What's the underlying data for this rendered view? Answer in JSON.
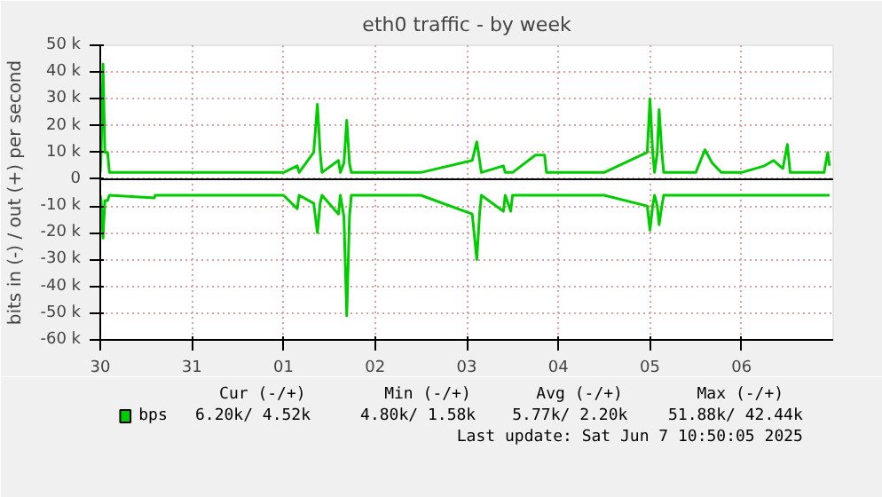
{
  "chart_data": {
    "type": "line",
    "title": "eth0 traffic - by week",
    "ylabel": "bits in (-) / out (+) per second",
    "x": [
      "2025-05-30T00:00",
      "2025-05-30T00:14",
      "2025-05-30T00:43",
      "2025-05-30T01:12",
      "2025-05-30T01:55",
      "2025-05-30T02:24",
      "2025-05-30T14:10",
      "2025-05-30T14:24",
      "2025-05-31T00:00",
      "2025-05-31T12:00",
      "2025-06-01T00:00",
      "2025-06-01T03:36",
      "2025-06-01T04:05",
      "2025-06-01T07:55",
      "2025-06-01T08:53",
      "2025-06-01T09:36",
      "2025-06-01T10:05",
      "2025-06-01T14:24",
      "2025-06-01T14:53",
      "2025-06-01T15:50",
      "2025-06-01T16:34",
      "2025-06-01T17:17",
      "2025-06-01T17:46",
      "2025-06-02T00:00",
      "2025-06-02T12:00",
      "2025-06-03T01:26",
      "2025-06-03T02:38",
      "2025-06-03T03:22",
      "2025-06-03T03:50",
      "2025-06-03T09:36",
      "2025-06-03T10:05",
      "2025-06-03T11:31",
      "2025-06-03T12:00",
      "2025-06-03T18:00",
      "2025-06-03T20:24",
      "2025-06-03T20:53",
      "2025-06-04T00:00",
      "2025-06-04T12:00",
      "2025-06-04T23:17",
      "2025-06-05T00:00",
      "2025-06-05T00:43",
      "2025-06-05T01:12",
      "2025-06-05T01:55",
      "2025-06-05T02:24",
      "2025-06-05T03:07",
      "2025-06-05T03:36",
      "2025-06-05T12:00",
      "2025-06-05T14:24",
      "2025-06-05T16:19",
      "2025-06-05T18:43",
      "2025-06-06T00:00",
      "2025-06-06T06:00",
      "2025-06-06T08:24",
      "2025-06-06T10:48",
      "2025-06-06T12:00",
      "2025-06-06T12:43",
      "2025-06-06T21:36",
      "2025-06-06T22:34",
      "2025-06-06T23:02"
    ],
    "series": [
      {
        "name": "bps",
        "color": "#00cc00",
        "values": [
          2500,
          10000,
          43000,
          10000,
          10000,
          2500,
          2500,
          2500,
          2500,
          2500,
          2500,
          5000,
          2500,
          10000,
          28000,
          10000,
          2500,
          7000,
          2500,
          6000,
          22000,
          6000,
          2500,
          2500,
          2500,
          7000,
          14000,
          7000,
          2500,
          5000,
          2500,
          2500,
          2500,
          9000,
          9000,
          2500,
          2500,
          2500,
          10000,
          30000,
          10000,
          2500,
          10000,
          26000,
          10000,
          2500,
          2500,
          11000,
          6000,
          2500,
          2500,
          5000,
          7000,
          4000,
          13000,
          2500,
          2500,
          10000,
          5000
        ]
      },
      {
        "color": "#00cc00",
        "values": [
          -6000,
          -8000,
          -22000,
          -8000,
          -8000,
          -6000,
          -7000,
          -6000,
          -6000,
          -6000,
          -6000,
          -11000,
          -6000,
          -9000,
          -20000,
          -9000,
          -6000,
          -13000,
          -6000,
          -14000,
          -51000,
          -14000,
          -6000,
          -6000,
          -6000,
          -13000,
          -30000,
          -13000,
          -6000,
          -12000,
          -6000,
          -12000,
          -6000,
          -6000,
          -6000,
          -6000,
          -6000,
          -6000,
          -10000,
          -19000,
          -10000,
          -6000,
          -10000,
          -17000,
          -10000,
          -6000,
          -6000,
          -6000,
          -6000,
          -6000,
          -6000,
          -6000,
          -6000,
          -6000,
          -6000,
          -6000,
          -6000,
          -6000,
          -6000
        ]
      }
    ],
    "xlim": [
      "2025-05-30T00:00",
      "2025-06-07T00:00"
    ],
    "xticks": [
      {
        "value": "2025-05-30",
        "label": "30"
      },
      {
        "value": "2025-05-31",
        "label": "31"
      },
      {
        "value": "2025-06-01",
        "label": "01"
      },
      {
        "value": "2025-06-02",
        "label": "02"
      },
      {
        "value": "2025-06-03",
        "label": "03"
      },
      {
        "value": "2025-06-04",
        "label": "04"
      },
      {
        "value": "2025-06-05",
        "label": "05"
      },
      {
        "value": "2025-06-06",
        "label": "06"
      }
    ],
    "ylim": [
      -60000,
      50000
    ],
    "yticks": [
      {
        "value": 50000,
        "label": "50 k"
      },
      {
        "value": 40000,
        "label": "40 k"
      },
      {
        "value": 30000,
        "label": "30 k"
      },
      {
        "value": 20000,
        "label": "20 k"
      },
      {
        "value": 10000,
        "label": "10 k"
      },
      0,
      {
        "value": -10000,
        "label": "-10 k"
      },
      {
        "value": -20000,
        "label": "-20 k"
      },
      {
        "value": -30000,
        "label": "-30 k"
      },
      {
        "value": -40000,
        "label": "-40 k"
      },
      {
        "value": -50000,
        "label": "-50 k"
      },
      {
        "value": -60000,
        "label": "-60 k"
      }
    ],
    "ref_lines": [
      {
        "axis": "y",
        "value": 0,
        "color": "#000000"
      }
    ],
    "grid": true,
    "legend": "bottom",
    "marker": "none",
    "line_style": "solid",
    "annotations": [
      "Cur (-/+)",
      "Min (-/+)",
      "Avg (-/+)",
      "Max (-/+)",
      "6.20k/   4.52k",
      "4.80k/   1.58k",
      "5.77k/   2.20k",
      "51.88k/  42.44k",
      "Last update: Sat Jun  7 10:50:05 2025"
    ]
  }
}
